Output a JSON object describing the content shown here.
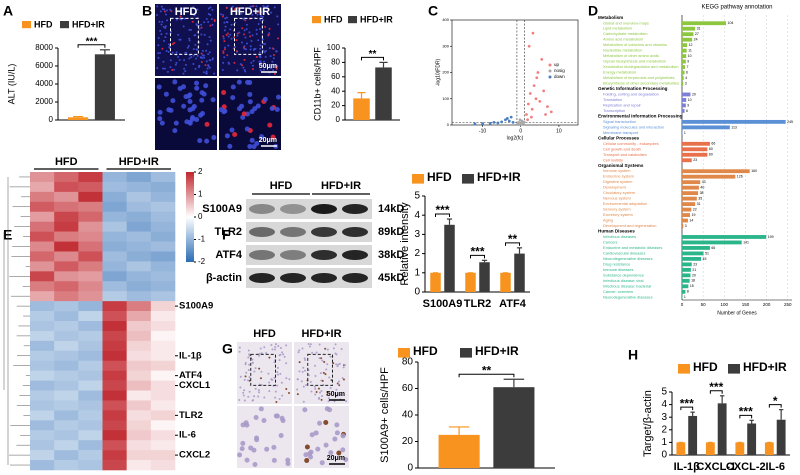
{
  "figure": {
    "panel_letters": [
      "A",
      "B",
      "C",
      "D",
      "E",
      "F",
      "G",
      "H"
    ],
    "micrograph_B": {
      "columns": [
        "HFD",
        "HFD+IR"
      ],
      "scale_top": "50μm",
      "scale_bottom": "20μm"
    },
    "micrograph_G": {
      "columns": [
        "HFD",
        "HFD+IR"
      ],
      "scale_top": "50μm",
      "scale_bottom": "20μm"
    },
    "blot": {
      "groups": [
        "HFD",
        "HFD+IR"
      ],
      "proteins": [
        "S100A9",
        "TLR2",
        "ATF4",
        "β-actin"
      ],
      "sizes": [
        "14kD",
        "89kD",
        "38kD",
        "45kD"
      ]
    }
  },
  "chart_data": [
    {
      "type": "bar",
      "ylabel": "ALT (IU/L)",
      "categories": [
        null
      ],
      "series": [
        {
          "name": "HFD",
          "color": "#f7931e",
          "values": [
            300
          ],
          "errors": [
            80
          ]
        },
        {
          "name": "HFD+IR",
          "color": "#3c3c3c",
          "values": [
            7300
          ],
          "errors": [
            500
          ]
        }
      ],
      "ylim": [
        0,
        8000
      ],
      "yticks": [
        0,
        2000,
        4000,
        6000,
        8000
      ],
      "significance": [
        "***"
      ]
    },
    {
      "type": "bar",
      "ylabel": "CD11b+ cells/HPF",
      "categories": [
        null
      ],
      "series": [
        {
          "name": "HFD",
          "color": "#f7931e",
          "values": [
            30
          ],
          "errors": [
            8
          ]
        },
        {
          "name": "HFD+IR",
          "color": "#3c3c3c",
          "values": [
            73
          ],
          "errors": [
            7
          ]
        }
      ],
      "ylim": [
        0,
        100
      ],
      "yticks": [
        0,
        20,
        40,
        60,
        80,
        100
      ],
      "significance": [
        "**"
      ]
    },
    {
      "type": "scatter",
      "xlabel": "log2(fc)",
      "ylabel": "-log10(FDR)",
      "series": [
        {
          "name": "up",
          "color": "#f08080",
          "x": [
            1.5,
            2,
            2.5,
            3,
            3.5,
            4,
            4.5,
            5,
            5.5,
            6,
            7,
            8,
            2.2,
            3.2,
            4.2,
            1.8,
            2.8,
            6.5
          ],
          "y": [
            40,
            80,
            120,
            60,
            150,
            100,
            200,
            90,
            250,
            130,
            70,
            50,
            300,
            350,
            180,
            20,
            30,
            40
          ]
        },
        {
          "name": "nosig",
          "color": "#aaaaaa",
          "x": [
            -0.8,
            -0.5,
            0,
            0.3,
            0.6,
            0.9,
            -0.2,
            0.1
          ],
          "y": [
            5,
            10,
            8,
            15,
            6,
            12,
            20,
            3
          ]
        },
        {
          "name": "down",
          "color": "#4a7fc1",
          "x": [
            -2,
            -3,
            -4,
            -5,
            -6,
            -8,
            -10,
            -12,
            -3.5,
            -2.5,
            -7
          ],
          "y": [
            10,
            15,
            20,
            12,
            8,
            6,
            5,
            4,
            25,
            30,
            10
          ]
        }
      ],
      "thresholds": {
        "x": [
          -1,
          1
        ],
        "y": [
          10
        ]
      },
      "xlim": [
        -18,
        15
      ],
      "xticks": [
        -10,
        0,
        10
      ],
      "ylim": [
        0,
        400
      ],
      "yticks": [
        0,
        100,
        200,
        300,
        400
      ]
    },
    {
      "type": "hbar",
      "title": "KEGG pathway annotation",
      "xlabel": "Number of Genes",
      "xlim": [
        0,
        260
      ],
      "xticks": [
        0,
        50,
        100,
        150,
        200,
        250
      ],
      "groups": [
        {
          "name": "Metabolism",
          "color": "#8dc63f",
          "categories": [
            "Global and overview maps",
            "Lipid metabolism",
            "Carbohydrate metabolism",
            "Amino acid metabolism",
            "Metabolism of cofactors and vitamins",
            "Nucleotide metabolism",
            "Metabolism of other amino acids",
            "Glycan biosynthesis and metabolism",
            "Xenobiotics biodegradation and metabolism",
            "Energy metabolism",
            "Metabolism of terpenoids and polyketides",
            "Biosynthesis of other secondary metabolites"
          ],
          "values": [
            104,
            31,
            27,
            24,
            12,
            11,
            10,
            9,
            7,
            6,
            4,
            3
          ]
        },
        {
          "name": "Genetic Information Processing",
          "color": "#7b7fd6",
          "categories": [
            "Folding, sorting and degradation",
            "Translation",
            "Replication and repair",
            "Transcription"
          ],
          "values": [
            20,
            10,
            9,
            6
          ]
        },
        {
          "name": "Environmental Information Processing",
          "color": "#5b8fd6",
          "categories": [
            "Signal transduction",
            "Signaling molecules and interaction",
            "Membrane transport"
          ],
          "values": [
            245,
            113,
            1
          ]
        },
        {
          "name": "Cellular Processes",
          "color": "#e8704a",
          "categories": [
            "Cellular community - eukaryotes",
            "Cell growth and death",
            "Transport and catabolism",
            "Cell motility"
          ],
          "values": [
            66,
            60,
            60,
            23
          ]
        },
        {
          "name": "Organismal Systems",
          "color": "#e0884a",
          "categories": [
            "Immune system",
            "Endocrine system",
            "Digestive system",
            "Development",
            "Circulatory system",
            "Nervous system",
            "Environmental adaptation",
            "Sensory system",
            "Excretory system",
            "Aging",
            "Development and regeneration"
          ],
          "values": [
            160,
            126,
            43,
            40,
            38,
            35,
            31,
            22,
            19,
            14,
            3
          ]
        },
        {
          "name": "Human Diseases",
          "color": "#2bb58a",
          "categories": [
            "Infectious diseases",
            "Cancers",
            "Endocrine and metabolic diseases",
            "Cardiovascular diseases",
            "Neurodegenerative diseases",
            "Drug resistance",
            "Immune diseases",
            "Substance dependence",
            "Infectious disease: viral",
            "Infectious disease: bacterial",
            "Cancer: overview",
            "Neurodegenerative diseases"
          ],
          "values": [
            199,
            141,
            66,
            51,
            45,
            23,
            21,
            20,
            18,
            15,
            8,
            1
          ]
        }
      ]
    },
    {
      "type": "heatmap",
      "groups": [
        "HFD",
        "HFD+IR"
      ],
      "vlim": [
        -2,
        2
      ],
      "cticks": [
        2,
        1,
        0,
        -1,
        -2
      ],
      "colors": [
        "#2a6bb5",
        "#ffffff",
        "#c0262d"
      ],
      "row_labels": [
        null,
        null,
        null,
        null,
        null,
        null,
        null,
        null,
        null,
        null,
        null,
        null,
        null,
        "S100A9",
        null,
        null,
        null,
        null,
        "IL-1β",
        null,
        "ATF4",
        "CXCL1",
        null,
        null,
        "TLR2",
        null,
        "IL-6",
        null,
        "CXCL2",
        null
      ],
      "values": [
        [
          1.0,
          1.4,
          1.8,
          -1.0,
          -1.2,
          -0.9
        ],
        [
          0.8,
          1.6,
          1.5,
          -0.9,
          -1.0,
          -1.1
        ],
        [
          1.2,
          1.0,
          1.9,
          -1.1,
          -0.8,
          -1.0
        ],
        [
          1.5,
          1.3,
          1.2,
          -1.2,
          -0.9,
          -0.8
        ],
        [
          0.9,
          1.7,
          1.4,
          -1.0,
          -1.1,
          -0.9
        ],
        [
          1.3,
          1.8,
          1.0,
          -0.8,
          -1.2,
          -1.0
        ],
        [
          1.6,
          1.2,
          1.1,
          -1.0,
          -0.9,
          -1.1
        ],
        [
          1.1,
          1.9,
          1.3,
          -1.1,
          -1.0,
          -0.9
        ],
        [
          1.4,
          1.1,
          1.6,
          -0.9,
          -1.1,
          -1.2
        ],
        [
          1.0,
          1.5,
          1.2,
          -1.0,
          -0.8,
          -1.0
        ],
        [
          1.7,
          1.0,
          0.9,
          -1.2,
          -1.0,
          -0.9
        ],
        [
          1.2,
          1.4,
          1.1,
          -0.9,
          -1.1,
          -1.0
        ],
        [
          0.8,
          1.2,
          1.0,
          -0.7,
          -0.9,
          -0.8
        ],
        [
          -0.9,
          -0.8,
          -1.0,
          1.8,
          1.2,
          0.4
        ],
        [
          -0.7,
          -0.9,
          -0.6,
          1.6,
          0.8,
          0.2
        ],
        [
          -0.8,
          -0.7,
          -0.9,
          1.9,
          0.5,
          0.3
        ],
        [
          -0.6,
          -0.8,
          -0.7,
          1.7,
          0.6,
          0.1
        ],
        [
          -0.9,
          -0.6,
          -0.8,
          1.8,
          0.4,
          0.2
        ],
        [
          -0.7,
          -0.8,
          -0.9,
          1.9,
          0.3,
          0.2
        ],
        [
          -0.8,
          -0.9,
          -0.7,
          1.6,
          0.5,
          0.4
        ],
        [
          -0.6,
          -0.7,
          -0.8,
          1.8,
          0.4,
          0.1
        ],
        [
          -0.9,
          -0.8,
          -0.6,
          1.7,
          0.6,
          0.3
        ],
        [
          -0.7,
          -0.6,
          -0.9,
          1.9,
          0.2,
          0.3
        ],
        [
          -0.8,
          -0.7,
          -0.8,
          1.6,
          0.5,
          0.2
        ],
        [
          -0.6,
          -0.9,
          -0.7,
          1.8,
          0.3,
          0.4
        ],
        [
          -0.9,
          -0.7,
          -0.8,
          1.7,
          0.4,
          0.1
        ],
        [
          -0.7,
          -0.8,
          -0.6,
          1.9,
          0.5,
          0.3
        ],
        [
          -0.8,
          -0.6,
          -0.9,
          1.6,
          0.3,
          0.2
        ],
        [
          -0.6,
          -0.9,
          -0.7,
          1.8,
          0.4,
          0.4
        ],
        [
          -0.9,
          -0.7,
          -0.8,
          1.7,
          0.2,
          0.3
        ]
      ]
    },
    {
      "type": "bar",
      "ylabel": "Relative intensity",
      "categories": [
        "S100A9",
        "TLR2",
        "ATF4"
      ],
      "series": [
        {
          "name": "HFD",
          "color": "#f7931e",
          "values": [
            1,
            1,
            1
          ],
          "errors": [
            0,
            0,
            0
          ]
        },
        {
          "name": "HFD+IR",
          "color": "#3c3c3c",
          "values": [
            3.5,
            1.55,
            2.0
          ],
          "errors": [
            0.3,
            0.1,
            0.3
          ]
        }
      ],
      "ylim": [
        0,
        5
      ],
      "yticks": [
        0,
        1,
        2,
        3,
        4,
        5
      ],
      "significance": [
        "***",
        "***",
        "**"
      ]
    },
    {
      "type": "bar",
      "ylabel": "S100A9+ cells/HPF",
      "categories": [
        null
      ],
      "series": [
        {
          "name": "HFD",
          "color": "#f7931e",
          "values": [
            25
          ],
          "errors": [
            6
          ]
        },
        {
          "name": "HFD+IR",
          "color": "#3c3c3c",
          "values": [
            61
          ],
          "errors": [
            6
          ]
        }
      ],
      "ylim": [
        0,
        80
      ],
      "yticks": [
        0,
        20,
        40,
        60,
        80
      ],
      "significance": [
        "**"
      ]
    },
    {
      "type": "bar",
      "ylabel": "Target/β-actin",
      "categories": [
        "IL-1β",
        "CXCL-1",
        "CXCL-2",
        "IL-6"
      ],
      "series": [
        {
          "name": "HFD",
          "color": "#f7931e",
          "values": [
            1,
            1,
            1,
            1
          ],
          "errors": [
            0,
            0,
            0,
            0
          ]
        },
        {
          "name": "HFD+IR",
          "color": "#3c3c3c",
          "values": [
            3.1,
            4.1,
            2.5,
            2.8
          ],
          "errors": [
            0.3,
            0.6,
            0.25,
            0.8
          ]
        }
      ],
      "ylim": [
        0,
        5
      ],
      "yticks": [
        0,
        1,
        2,
        3,
        4,
        5
      ],
      "significance": [
        "***",
        "***",
        "***",
        "*"
      ]
    }
  ]
}
